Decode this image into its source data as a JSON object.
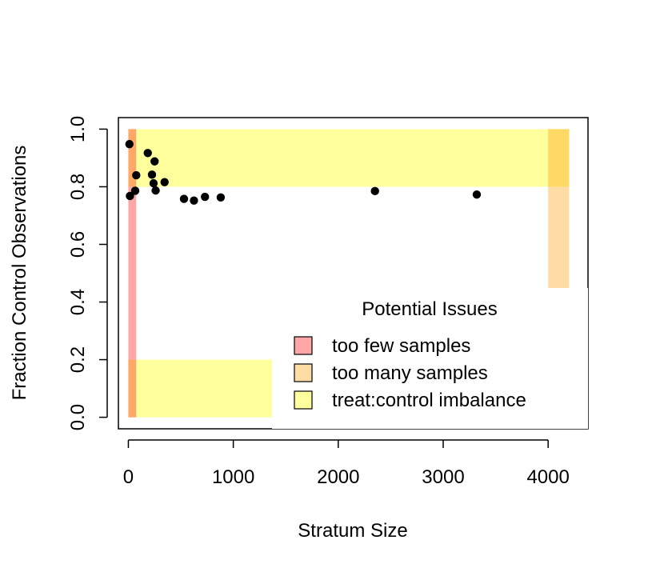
{
  "chart_data": {
    "type": "scatter",
    "title": "",
    "xlabel": "Stratum Size",
    "ylabel": "Fraction Control Observations",
    "xlim": [
      -95,
      4380
    ],
    "ylim": [
      -0.04,
      1.04
    ],
    "x_ticks": [
      0,
      1000,
      2000,
      3000,
      4000
    ],
    "x_tick_labels": [
      "0",
      "1000",
      "2000",
      "3000",
      "4000"
    ],
    "y_ticks": [
      0.0,
      0.2,
      0.4,
      0.6,
      0.8,
      1.0
    ],
    "y_tick_labels": [
      "0.0",
      "0.2",
      "0.4",
      "0.6",
      "0.8",
      "1.0"
    ],
    "grid": false,
    "point_color": "#000000",
    "points": [
      {
        "x": 10,
        "y": 0.948
      },
      {
        "x": 15,
        "y": 0.768
      },
      {
        "x": 65,
        "y": 0.786
      },
      {
        "x": 75,
        "y": 0.84
      },
      {
        "x": 185,
        "y": 0.917
      },
      {
        "x": 225,
        "y": 0.842
      },
      {
        "x": 240,
        "y": 0.812
      },
      {
        "x": 250,
        "y": 0.888
      },
      {
        "x": 260,
        "y": 0.787
      },
      {
        "x": 345,
        "y": 0.816
      },
      {
        "x": 530,
        "y": 0.758
      },
      {
        "x": 625,
        "y": 0.752
      },
      {
        "x": 730,
        "y": 0.765
      },
      {
        "x": 880,
        "y": 0.763
      },
      {
        "x": 2350,
        "y": 0.785
      },
      {
        "x": 3320,
        "y": 0.773
      }
    ],
    "regions": [
      {
        "issue": "too few samples",
        "x0": 0,
        "x1": 75,
        "y0": 0,
        "y1": 1,
        "color": "#FFA6A6"
      },
      {
        "issue": "too many samples",
        "x0": 4000,
        "x1": 4200,
        "y0": 0,
        "y1": 1,
        "color": "#FFDCA6"
      },
      {
        "issue": "treat:control imbalance",
        "x0": 0,
        "x1": 4200,
        "y0": 0.8,
        "y1": 1,
        "color": "#FFFF9E"
      },
      {
        "issue": "treat:control imbalance",
        "x0": 0,
        "x1": 4200,
        "y0": 0,
        "y1": 0.2,
        "color": "#FFFF9E"
      }
    ],
    "overlap_colors": {
      "few_and_imbalance": "#FFA867",
      "many_and_imbalance": "#FFD966"
    },
    "legend": {
      "title": "Potential Issues",
      "placement": "bottom-right",
      "entries": [
        {
          "label": "too few samples",
          "color": "#FFA6A6"
        },
        {
          "label": "too many samples",
          "color": "#FFDCA6"
        },
        {
          "label": "treat:control imbalance",
          "color": "#FFFF9E"
        }
      ]
    }
  }
}
